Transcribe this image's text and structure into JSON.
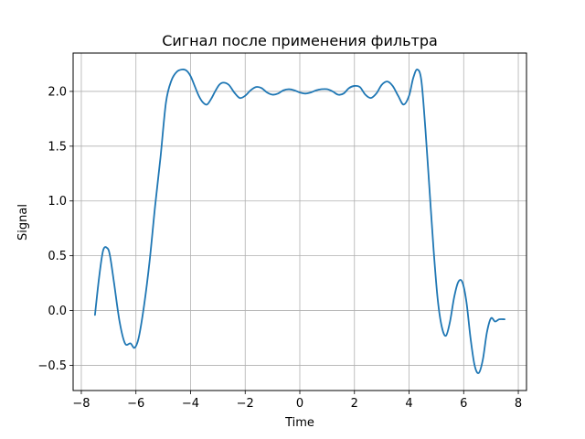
{
  "chart_data": {
    "type": "line",
    "title": "Сигнал после применения фильтра",
    "xlabel": "Time",
    "ylabel": "Signal",
    "xlim": [
      -8.3,
      8.3
    ],
    "ylim": [
      -0.73,
      2.35
    ],
    "xticks": [
      -8,
      -6,
      -4,
      -2,
      0,
      2,
      4,
      6,
      8
    ],
    "xtick_labels": [
      "−8",
      "−6",
      "−4",
      "−2",
      "0",
      "2",
      "4",
      "6",
      "8"
    ],
    "yticks": [
      -0.5,
      0.0,
      0.5,
      1.0,
      1.5,
      2.0
    ],
    "ytick_labels": [
      "−0.5",
      "0.0",
      "0.5",
      "1.0",
      "1.5",
      "2.0"
    ],
    "grid": true,
    "series": [
      {
        "color": "#1f77b4",
        "x": [
          -7.5,
          -7.35,
          -7.2,
          -7.05,
          -6.95,
          -6.8,
          -6.6,
          -6.4,
          -6.2,
          -6.05,
          -5.9,
          -5.7,
          -5.5,
          -5.3,
          -5.1,
          -4.9,
          -4.7,
          -4.5,
          -4.3,
          -4.15,
          -4.0,
          -3.85,
          -3.7,
          -3.55,
          -3.4,
          -3.25,
          -3.1,
          -2.95,
          -2.8,
          -2.6,
          -2.4,
          -2.2,
          -2.0,
          -1.8,
          -1.6,
          -1.4,
          -1.2,
          -1.0,
          -0.8,
          -0.6,
          -0.4,
          -0.2,
          0.0,
          0.2,
          0.4,
          0.6,
          0.8,
          1.0,
          1.2,
          1.4,
          1.6,
          1.8,
          2.0,
          2.2,
          2.4,
          2.6,
          2.8,
          3.0,
          3.2,
          3.4,
          3.6,
          3.8,
          4.0,
          4.15,
          4.3,
          4.45,
          4.6,
          4.75,
          4.9,
          5.05,
          5.2,
          5.35,
          5.5,
          5.65,
          5.8,
          5.95,
          6.1,
          6.25,
          6.4,
          6.55,
          6.7,
          6.85,
          7.0,
          7.15,
          7.3,
          7.5
        ],
        "y": [
          -0.04,
          0.3,
          0.55,
          0.57,
          0.5,
          0.25,
          -0.1,
          -0.3,
          -0.3,
          -0.34,
          -0.25,
          0.05,
          0.45,
          0.95,
          1.4,
          1.9,
          2.1,
          2.18,
          2.2,
          2.19,
          2.14,
          2.05,
          1.96,
          1.9,
          1.88,
          1.93,
          2.0,
          2.06,
          2.08,
          2.06,
          1.99,
          1.94,
          1.96,
          2.01,
          2.04,
          2.03,
          1.99,
          1.97,
          1.98,
          2.01,
          2.02,
          2.01,
          1.99,
          1.98,
          1.99,
          2.01,
          2.02,
          2.02,
          2.0,
          1.97,
          1.98,
          2.03,
          2.05,
          2.04,
          1.97,
          1.94,
          1.98,
          2.06,
          2.09,
          2.05,
          1.96,
          1.88,
          1.96,
          2.12,
          2.2,
          2.1,
          1.65,
          1.1,
          0.55,
          0.1,
          -0.15,
          -0.23,
          -0.1,
          0.12,
          0.26,
          0.26,
          0.08,
          -0.25,
          -0.5,
          -0.57,
          -0.45,
          -0.2,
          -0.07,
          -0.1,
          -0.08,
          -0.08
        ]
      }
    ]
  }
}
